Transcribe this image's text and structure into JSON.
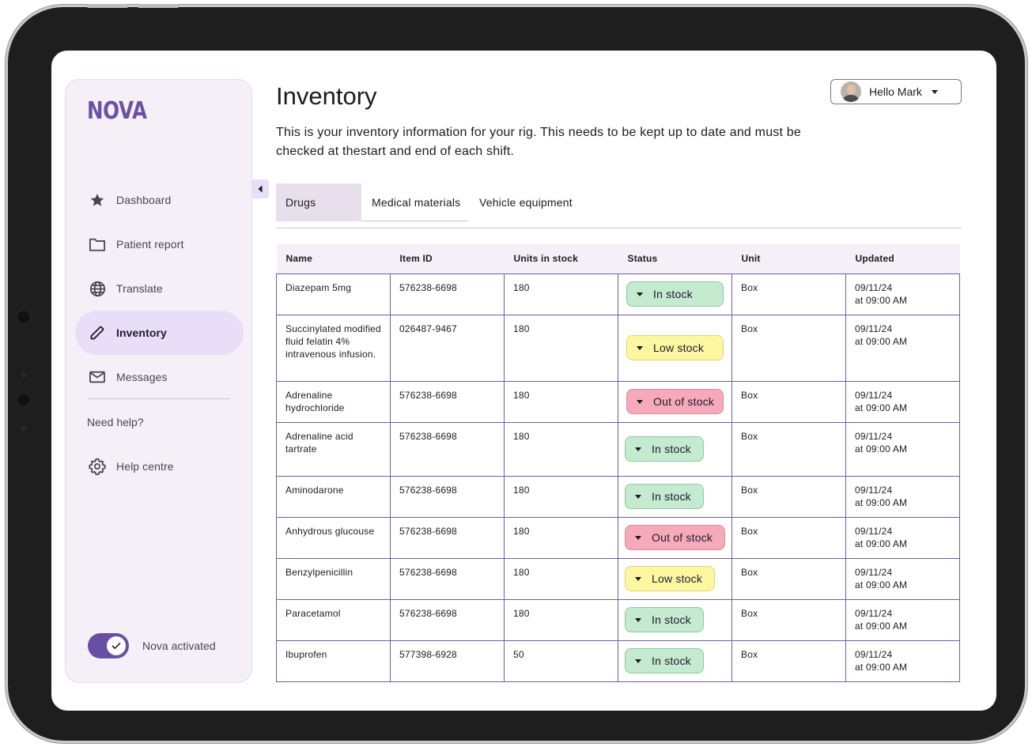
{
  "app": {
    "logo": "NOVA"
  },
  "sidebar": {
    "items": [
      {
        "label": "Dashboard",
        "icon": "star-icon",
        "active": false
      },
      {
        "label": "Patient report",
        "icon": "folder-icon",
        "active": false
      },
      {
        "label": "Translate",
        "icon": "globe-icon",
        "active": false
      },
      {
        "label": "Inventory",
        "icon": "pencil-icon",
        "active": true
      },
      {
        "label": "Messages",
        "icon": "mail-icon",
        "active": false
      }
    ],
    "need_help": "Need help?",
    "help_centre": {
      "label": "Help centre",
      "icon": "gear-icon"
    },
    "toggle": {
      "label": "Nova activated",
      "on": true
    }
  },
  "header": {
    "title": "Inventory",
    "description": "This is your inventory information for your rig. This needs to be kept up to date and must be checked at thestart and end of each shift.",
    "user_greeting": "Hello Mark"
  },
  "tabs": [
    {
      "label": "Drugs",
      "active": true
    },
    {
      "label": "Medical materials",
      "active": false
    },
    {
      "label": "Vehicle equipment",
      "active": false
    }
  ],
  "table": {
    "columns": [
      "Name",
      "Item ID",
      "Units in stock",
      "Status",
      "Unit",
      "Updated"
    ],
    "rows": [
      {
        "name": "Diazepam 5mg",
        "item_id": "576238-6698",
        "units": "180",
        "status": "In stock",
        "unit": "Box",
        "updated_date": "09/11/24",
        "updated_time": "at 09:00 AM"
      },
      {
        "name": "Succinylated modified fluid felatin 4% intravenous infusion.",
        "item_id": "026487-9467",
        "units": "180",
        "status": "Low stock",
        "unit": "Box",
        "updated_date": "09/11/24",
        "updated_time": "at 09:00 AM"
      },
      {
        "name": "Adrenaline hydrochloride",
        "item_id": "576238-6698",
        "units": "180",
        "status": "Out of stock",
        "unit": "Box",
        "updated_date": "09/11/24",
        "updated_time": "at 09:00 AM"
      },
      {
        "name": "Adrenaline acid tartrate",
        "item_id": "576238-6698",
        "units": "180",
        "status": "In stock",
        "unit": "Box",
        "updated_date": "09/11/24",
        "updated_time": "at 09:00 AM"
      },
      {
        "name": "Aminodarone",
        "item_id": "576238-6698",
        "units": "180",
        "status": "In stock",
        "unit": "Box",
        "updated_date": "09/11/24",
        "updated_time": "at 09:00 AM"
      },
      {
        "name": "Anhydrous glucouse",
        "item_id": "576238-6698",
        "units": "180",
        "status": "Out of stock",
        "unit": "Box",
        "updated_date": "09/11/24",
        "updated_time": "at 09:00 AM"
      },
      {
        "name": "Benzylpenicillin",
        "item_id": "576238-6698",
        "units": "180",
        "status": "Low stock",
        "unit": "Box",
        "updated_date": "09/11/24",
        "updated_time": "at 09:00 AM"
      },
      {
        "name": "Paracetamol",
        "item_id": "576238-6698",
        "units": "180",
        "status": "In stock",
        "unit": "Box",
        "updated_date": "09/11/24",
        "updated_time": "at 09:00 AM"
      },
      {
        "name": "Ibuprofen",
        "item_id": "577398-6928",
        "units": "50",
        "status": "In stock",
        "unit": "Box",
        "updated_date": "09/11/24",
        "updated_time": "at 09:00 AM"
      }
    ]
  },
  "colors": {
    "accent": "#6750a4",
    "logo": "#6a52a3",
    "sidebar_bg": "#f5eff8",
    "active_nav": "#e8def8",
    "in_stock": "#c4eacf",
    "low_stock": "#fcf7a0",
    "out_of_stock": "#f6aab9",
    "table_border": "#6f5fa0"
  }
}
